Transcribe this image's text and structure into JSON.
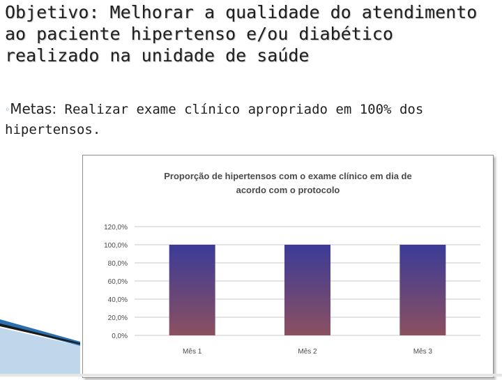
{
  "slide": {
    "title": "Objetivo: Melhorar a qualidade do atendimento ao paciente hipertenso e/ou diabético realizado na unidade de saúde",
    "bullet_label": "Metas:",
    "bullet_text": " Realizar exame clínico apropriado em 100% dos hipertensos."
  },
  "colors": {
    "bar_top": "#3b3b98",
    "bar_bottom": "#8c5060",
    "grid": "#c8c8c8",
    "text": "#4a4a4a"
  },
  "chart_data": {
    "type": "bar",
    "title": "Proporção de hipertensos com o exame clínico em dia de acordo com o protocolo",
    "title_lines": [
      "Proporção de hipertensos com o exame clínico em dia de",
      "acordo com o protocolo"
    ],
    "categories": [
      "Mês 1",
      "Mês 2",
      "Mês 3"
    ],
    "values": [
      1.0,
      1.0,
      1.0
    ],
    "ylim": [
      0,
      1.2
    ],
    "yticks": [
      0,
      0.2,
      0.4,
      0.6,
      0.8,
      1.0,
      1.2
    ],
    "ytick_labels": [
      "0,0%",
      "20,0%",
      "40,0%",
      "60,0%",
      "80,0%",
      "100,0%",
      "120,0%"
    ],
    "grid": true,
    "legend": "none"
  }
}
